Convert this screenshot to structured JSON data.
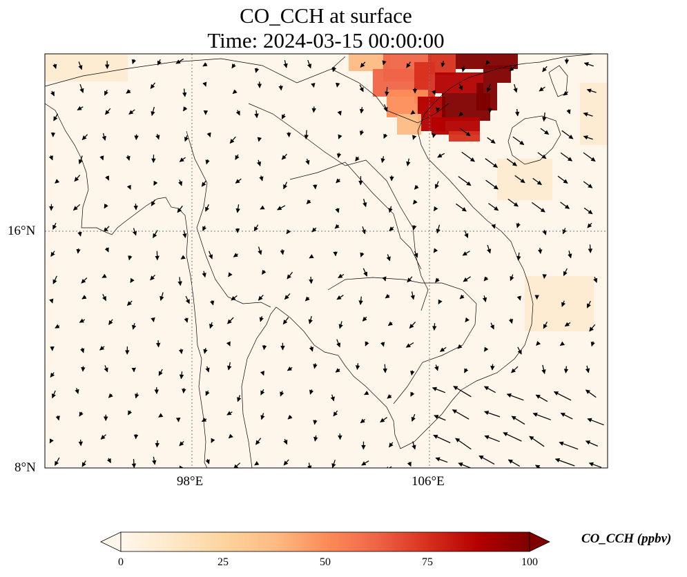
{
  "title": {
    "line1": "CO_CCH at surface",
    "line2": "Time: 2024-03-15 00:00:00"
  },
  "map": {
    "variable": "CO_CCH",
    "level": "surface",
    "units": "ppbv",
    "lon_range": [
      93,
      112
    ],
    "lat_range": [
      8,
      22
    ],
    "lon_ticks": [
      {
        "value": 98,
        "label": "98°E"
      },
      {
        "value": 106,
        "label": "106°E"
      }
    ],
    "lat_ticks": [
      {
        "value": 16,
        "label": "16°N"
      },
      {
        "value": 8,
        "label": "8°N"
      }
    ],
    "gridlines": "dotted",
    "colormap": "OrRd",
    "high_concentration_region": "northern Vietnam / Gulf of Tonkin",
    "wind_vectors": true
  },
  "colorbar": {
    "label": "CO_CCH (ppbv)",
    "ticks": [
      "0",
      "25",
      "50",
      "75",
      "100"
    ],
    "range": [
      0,
      100
    ],
    "extend": "both",
    "colors": [
      "#fff7ec",
      "#fee8c8",
      "#fdd49e",
      "#fdbb84",
      "#fc8d59",
      "#ef6548",
      "#d7301f",
      "#b30000",
      "#7f0000"
    ]
  }
}
